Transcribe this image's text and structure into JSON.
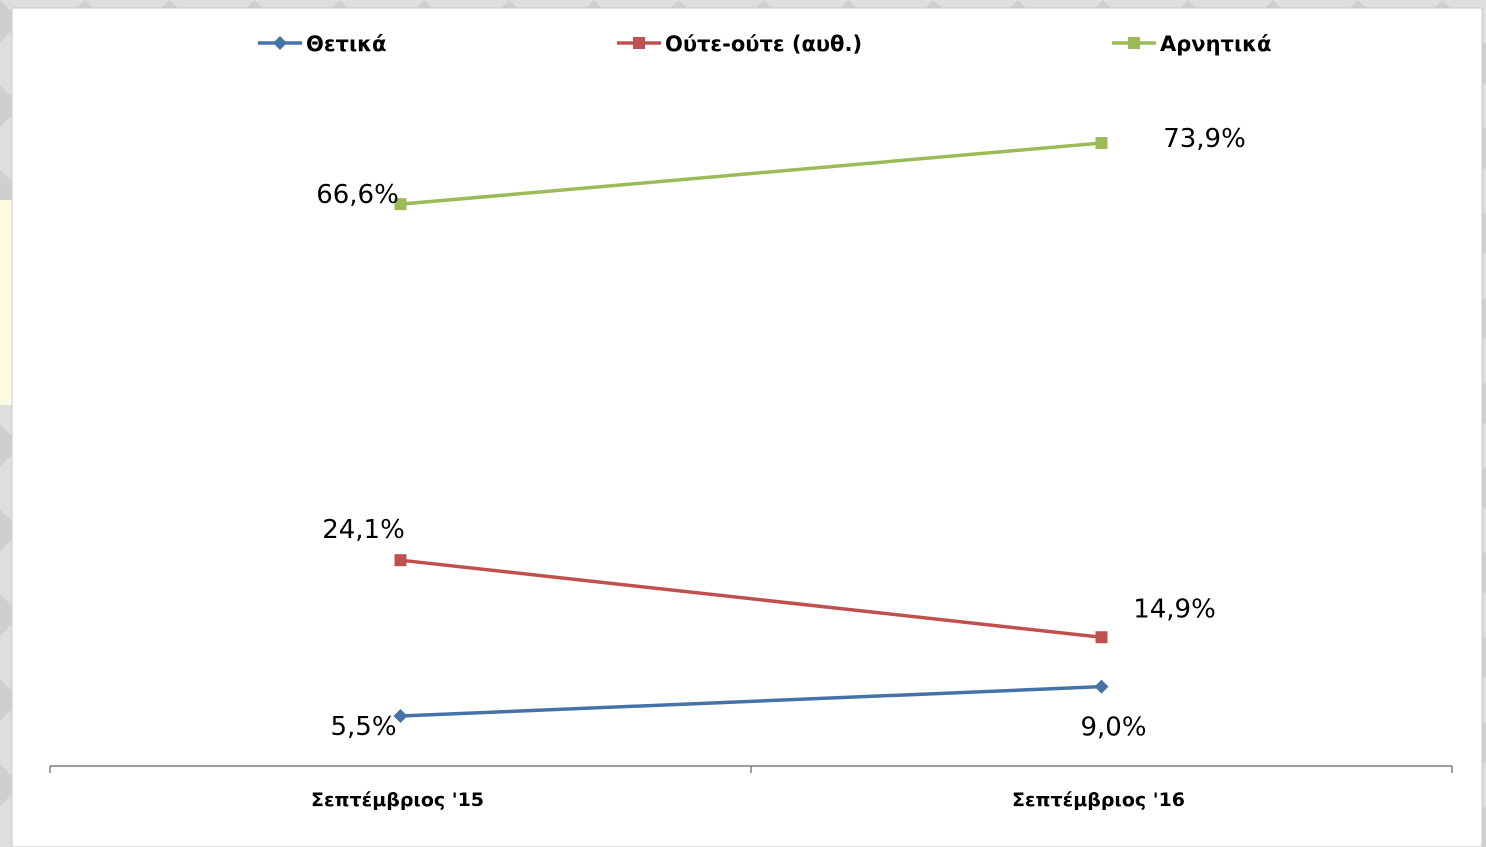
{
  "chart_data": {
    "type": "line",
    "categories": [
      "Σεπτέμβριος '15",
      "Σεπτέμβριος '16"
    ],
    "series": [
      {
        "name": "Θετικά",
        "values": [
          5.5,
          9.0
        ],
        "labels": [
          "5,5%",
          "9,0%"
        ],
        "color": "#4572a7",
        "marker": "diamond"
      },
      {
        "name": "Ούτε-ούτε (αυθ.)",
        "values": [
          24.1,
          14.9
        ],
        "labels": [
          "24,1%",
          "14,9%"
        ],
        "color": "#c0504d",
        "marker": "square"
      },
      {
        "name": "Αρνητικά",
        "values": [
          66.6,
          73.9
        ],
        "labels": [
          "66,6%",
          "73,9%"
        ],
        "color": "#9bbb59",
        "marker": "square"
      }
    ],
    "title": "",
    "xlabel": "",
    "ylabel": "",
    "ylim": [
      0,
      80
    ],
    "grid": false,
    "legend": "top",
    "yaxis_visible": false
  }
}
